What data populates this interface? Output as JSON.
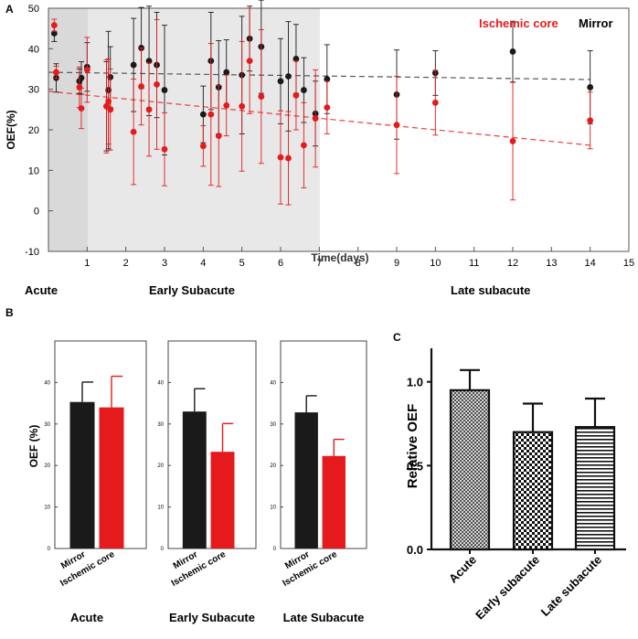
{
  "figure": {
    "panel_labels": [
      "A",
      "B",
      "C"
    ]
  },
  "colors": {
    "mirror": "#1a1a1a",
    "ischemic": "#e41a1c",
    "red_trend": "#ee3b3b",
    "black_trend": "#555555",
    "shade_dark": "#d9d9d9",
    "shade_light": "#e8e8e8"
  },
  "chart_data": [
    {
      "panel": "A",
      "type": "scatter",
      "xlabel": "Time(days)",
      "ylabel": "OEF(%)",
      "xlim": [
        0,
        15
      ],
      "ylim": [
        -10,
        50
      ],
      "xticks": [
        1,
        2,
        3,
        4,
        5,
        6,
        7,
        8,
        9,
        10,
        11,
        12,
        13,
        14,
        15
      ],
      "yticks": [
        -10,
        0,
        10,
        20,
        30,
        40,
        50
      ],
      "regions": [
        {
          "name": "Acute",
          "x_range": [
            0,
            1
          ]
        },
        {
          "name": "Early Subacute",
          "x_range": [
            1,
            7
          ]
        },
        {
          "name": "Late subacute",
          "x_range": [
            7,
            15
          ]
        }
      ],
      "legend": {
        "placement": "top-right",
        "entries": [
          "Ischemic core",
          "Mirror"
        ]
      },
      "series": [
        {
          "name": "Mirror",
          "points": [
            [
              0.15,
              43.8,
              2.0
            ],
            [
              0.2,
              32.8,
              3.5
            ],
            [
              0.8,
              32.0,
              3.0
            ],
            [
              0.85,
              32.8,
              4.0
            ],
            [
              1.0,
              35.5,
              6.0
            ],
            [
              1.5,
              25.8,
              11.0
            ],
            [
              1.55,
              29.8,
              14.5
            ],
            [
              1.6,
              33.0,
              7.5
            ],
            [
              2.2,
              36.0,
              11.5
            ],
            [
              2.4,
              40.2,
              10.0
            ],
            [
              2.6,
              37.0,
              13.5
            ],
            [
              2.8,
              36.0,
              13.0
            ],
            [
              3.0,
              29.8,
              16.0
            ],
            [
              4.0,
              23.8,
              7.0
            ],
            [
              4.2,
              37.0,
              12.0
            ],
            [
              4.4,
              30.5,
              11.5
            ],
            [
              4.6,
              34.2,
              8.0
            ],
            [
              5.0,
              33.5,
              14.5
            ],
            [
              5.2,
              42.5,
              8.0
            ],
            [
              5.5,
              40.5,
              11.5
            ],
            [
              6.0,
              32.0,
              10.5
            ],
            [
              6.2,
              33.2,
              13.5
            ],
            [
              6.4,
              37.5,
              8.5
            ],
            [
              6.6,
              29.8,
              8.0
            ],
            [
              6.9,
              24.0,
              8.0
            ],
            [
              7.2,
              32.5,
              8.5
            ],
            [
              9.0,
              28.7,
              11.0
            ],
            [
              10.0,
              34.0,
              5.5
            ],
            [
              12.0,
              39.3,
              7.5
            ],
            [
              14.0,
              30.5,
              9.0
            ]
          ]
        },
        {
          "name": "Ischemic core",
          "points": [
            [
              0.15,
              45.8,
              1.5
            ],
            [
              0.2,
              34.2,
              1.5
            ],
            [
              0.8,
              30.5,
              5.0
            ],
            [
              0.85,
              25.3,
              5.0
            ],
            [
              1.0,
              34.8,
              8.0
            ],
            [
              1.5,
              25.8,
              11.5
            ],
            [
              1.55,
              27.0,
              10.5
            ],
            [
              1.6,
              25.0,
              10.0
            ],
            [
              2.2,
              19.5,
              13.0
            ],
            [
              2.4,
              30.7,
              9.5
            ],
            [
              2.6,
              25.0,
              11.5
            ],
            [
              2.8,
              31.2,
              16.0
            ],
            [
              3.0,
              15.2,
              9.0
            ],
            [
              4.0,
              16.0,
              5.0
            ],
            [
              4.2,
              23.8,
              17.5
            ],
            [
              4.4,
              18.5,
              12.5
            ],
            [
              4.6,
              26.0,
              7.5
            ],
            [
              5.0,
              25.8,
              16.0
            ],
            [
              5.2,
              37.0,
              13.0
            ],
            [
              5.5,
              28.2,
              16.5
            ],
            [
              6.0,
              13.2,
              11.5
            ],
            [
              6.2,
              13.0,
              11.5
            ],
            [
              6.4,
              28.5,
              8.5
            ],
            [
              6.6,
              16.2,
              10.5
            ],
            [
              6.9,
              22.8,
              12.0
            ],
            [
              7.2,
              25.5,
              6.5
            ],
            [
              9.0,
              21.2,
              12.0
            ],
            [
              10.0,
              26.7,
              8.0
            ],
            [
              12.0,
              17.2,
              14.5
            ],
            [
              14.0,
              22.3,
              7.0
            ]
          ]
        }
      ],
      "trendlines": [
        {
          "name": "Mirror",
          "from": [
            0,
            34.2
          ],
          "to": [
            14,
            32.4
          ]
        },
        {
          "name": "Ischemic core",
          "from": [
            0,
            29.5
          ],
          "to": [
            14,
            16.2
          ]
        }
      ]
    },
    {
      "panel": "B",
      "type": "bar",
      "ylabel": "OEF (%)",
      "ylim": [
        0,
        50
      ],
      "yticks": [
        0,
        10,
        20,
        30,
        40
      ],
      "categories": [
        "Mirror",
        "Ischemic core"
      ],
      "groups": [
        {
          "title": "Acute",
          "values": [
            35.3,
            34.0
          ],
          "errors": [
            4.8,
            7.5
          ]
        },
        {
          "title": "Early Subacute",
          "values": [
            33.0,
            23.3
          ],
          "errors": [
            5.5,
            6.8
          ]
        },
        {
          "title": "Late Subacute",
          "values": [
            32.8,
            22.3
          ],
          "errors": [
            4.0,
            4.0
          ]
        }
      ]
    },
    {
      "panel": "C",
      "type": "bar",
      "ylabel": "Relative OEF",
      "ylim": [
        0,
        1.2
      ],
      "yticks": [
        0.0,
        0.5,
        1.0
      ],
      "ytick_labels": [
        "0.0",
        "0.5",
        "1.0"
      ],
      "categories": [
        "Acute",
        "Early subacute",
        "Late subacute"
      ],
      "values": [
        0.95,
        0.7,
        0.73
      ],
      "errors": [
        0.12,
        0.17,
        0.17
      ],
      "patterns": [
        "crosshatch",
        "checker",
        "stripes"
      ]
    }
  ]
}
